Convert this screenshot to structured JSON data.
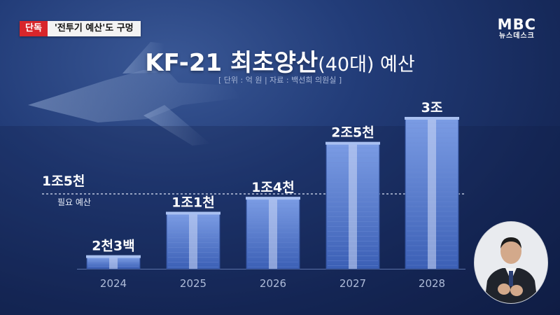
{
  "news_tag": {
    "label": "단독",
    "headline": "'전투기 예산'도 구멍"
  },
  "logo": {
    "main": "MBC",
    "sub": "뉴스데스크"
  },
  "colors": {
    "bar_top": "#7b9ce4",
    "bar_bottom": "#3b5fb5",
    "bar_cap": "#a9c0f0",
    "stripe": "#cdd9f5",
    "tag_red": "#d8262b"
  },
  "chart_data": {
    "type": "bar",
    "title": "KF-21 최초양산",
    "title_suffix": "(40대) 예산",
    "unit_note": "[ 단위 : 억 원 | 자료 : 백선희 의원실 ]",
    "categories": [
      "2024",
      "2025",
      "2026",
      "2027",
      "2028"
    ],
    "values": [
      2300,
      11000,
      14000,
      25000,
      30000
    ],
    "data_labels": [
      "2천3백",
      "1조1천",
      "1조4천",
      "2조5천",
      "3조"
    ],
    "reference": {
      "value": 15000,
      "value_label": "1조5천",
      "label": "필요 예산"
    },
    "ylim": [
      0,
      30000
    ],
    "grid": false,
    "legend": "none"
  }
}
